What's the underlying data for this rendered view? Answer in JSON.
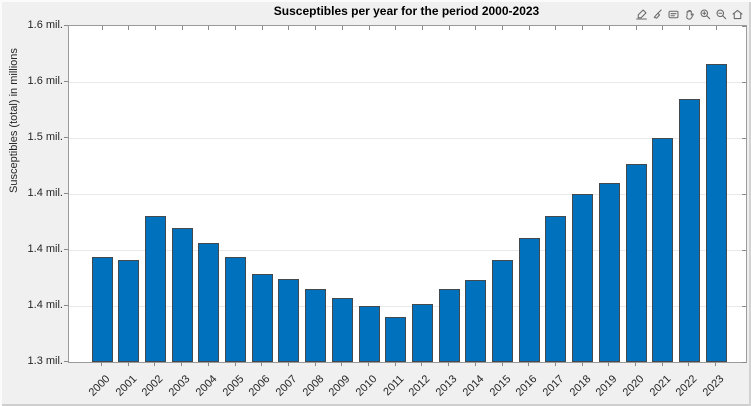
{
  "figure": {
    "background_color": "#f0f0f0",
    "plot_background_color": "#ffffff",
    "axis_box_color": "#9b9b9b",
    "grid_color": "#e9e9e9",
    "text_color": "#262626"
  },
  "toolbar": {
    "icons": [
      "export",
      "brush",
      "data-tips",
      "pan",
      "zoom-in",
      "zoom-out",
      "restore-view"
    ]
  },
  "chart_data": {
    "type": "bar",
    "title": "Susceptibles per year for the period 2000-2023",
    "xlabel": "",
    "ylabel": "Susceptibles (total) in millions",
    "unit": "millions",
    "categories": [
      "2000",
      "2001",
      "2002",
      "2003",
      "2004",
      "2005",
      "2006",
      "2007",
      "2008",
      "2009",
      "2010",
      "2011",
      "2012",
      "2013",
      "2014",
      "2015",
      "2016",
      "2017",
      "2018",
      "2019",
      "2020",
      "2021",
      "2022",
      "2023"
    ],
    "values": [
      1.394,
      1.391,
      1.43,
      1.42,
      1.406,
      1.394,
      1.379,
      1.374,
      1.365,
      1.357,
      1.35,
      1.34,
      1.352,
      1.365,
      1.373,
      1.391,
      1.411,
      1.43,
      1.45,
      1.46,
      1.477,
      1.5,
      1.535,
      1.566
    ],
    "ylim": [
      1.3,
      1.6
    ],
    "ytick_values": [
      1.6,
      1.55,
      1.5,
      1.45,
      1.4,
      1.35,
      1.3
    ],
    "ytick_labels": [
      "1.6 mil.",
      "1.6 mil.",
      "1.5 mil.",
      "1.4 mil.",
      "1.4 mil.",
      "1.4 mil.",
      "1.3 mil."
    ],
    "xtick_rotation": 45,
    "grid": "horizontal",
    "legend": "none",
    "bar_color": "#0072BD",
    "bar_edge_color": "#44494e"
  }
}
